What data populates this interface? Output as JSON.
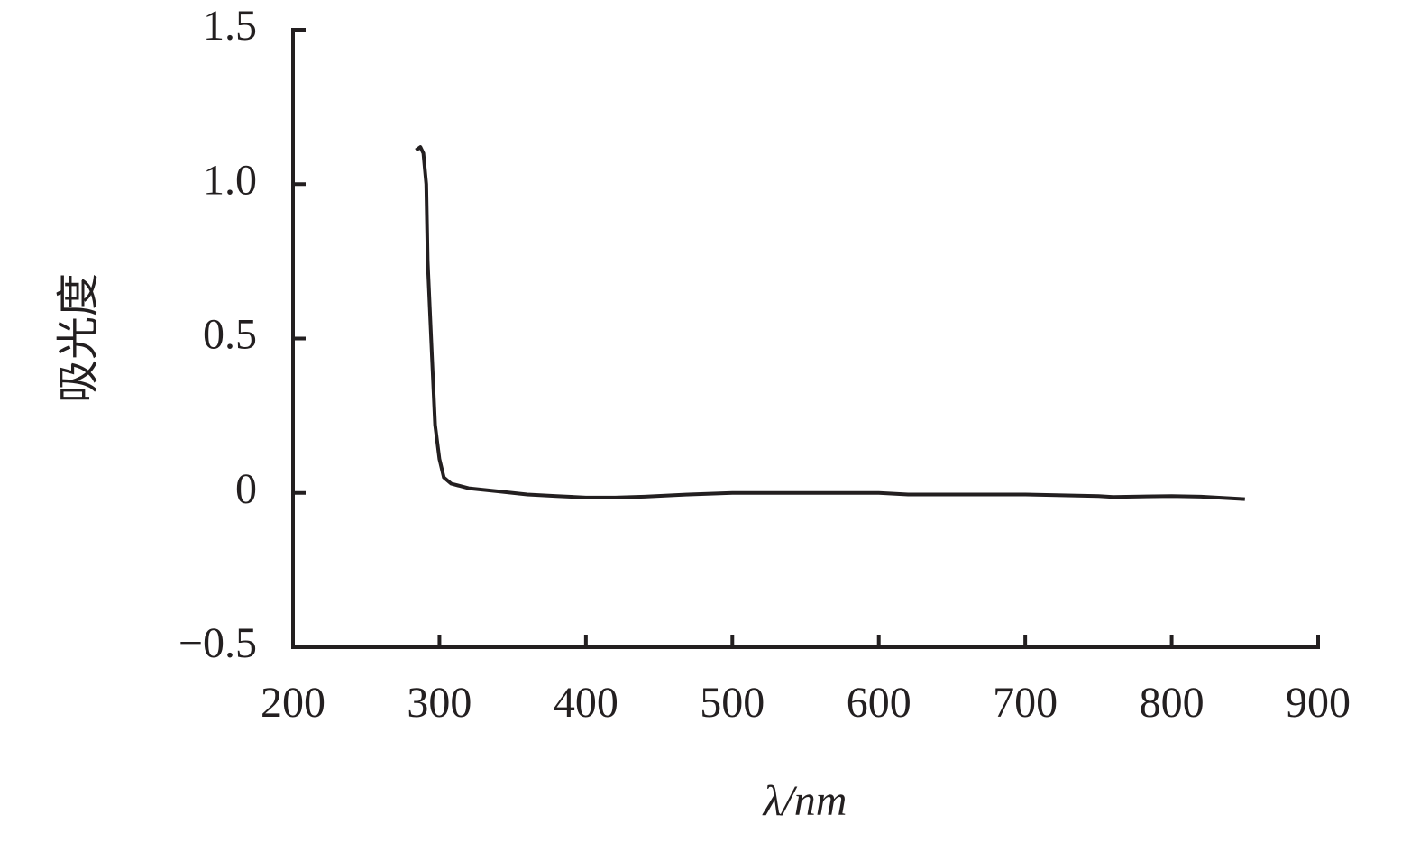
{
  "chart_data": {
    "type": "line",
    "x_label": "λ/nm",
    "y_label": "吸光度",
    "xlim": [
      200,
      900
    ],
    "xticks": [
      200,
      300,
      400,
      500,
      600,
      700,
      800,
      900
    ],
    "ylim": [
      -0.5,
      1.5
    ],
    "yticks": [
      {
        "value": -0.5,
        "label": "−0.5"
      },
      0,
      0.5,
      {
        "value": 1.0,
        "label": "1.0"
      },
      {
        "value": 1.5,
        "label": "1.5"
      }
    ],
    "series": [
      {
        "color": "#231f20",
        "x": [
          284,
          287,
          289,
          291,
          292,
          295,
          297,
          300,
          303,
          308,
          320,
          340,
          360,
          380,
          400,
          420,
          440,
          470,
          500,
          550,
          600,
          620,
          700,
          750,
          760,
          800,
          820,
          850
        ],
        "values": [
          1.11,
          1.12,
          1.1,
          1.0,
          0.75,
          0.43,
          0.22,
          0.11,
          0.05,
          0.03,
          0.015,
          0.005,
          -0.005,
          -0.01,
          -0.015,
          -0.015,
          -0.012,
          -0.005,
          0,
          0,
          0,
          -0.005,
          -0.005,
          -0.01,
          -0.013,
          -0.01,
          -0.012,
          -0.02
        ]
      }
    ]
  }
}
